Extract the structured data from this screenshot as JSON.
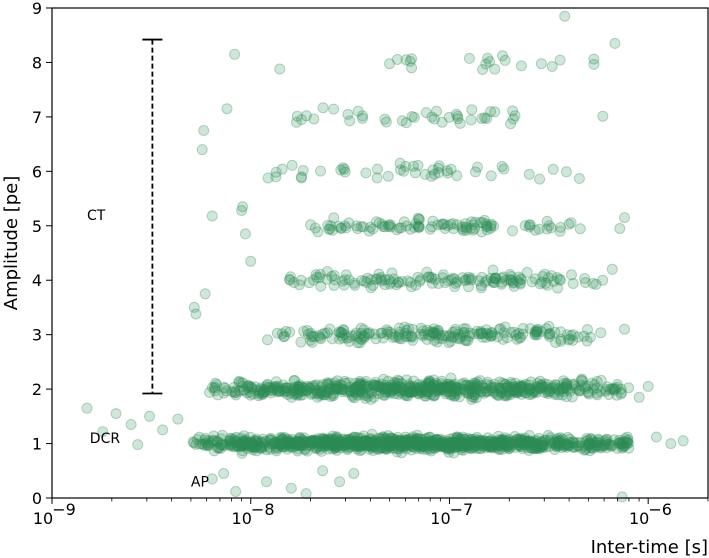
{
  "chart_data": {
    "type": "scatter",
    "xscale": "log",
    "xlabel": "Inter-time [s]",
    "ylabel": "Amplitude [pe]",
    "xlim": [
      1e-09,
      2e-06
    ],
    "ylim": [
      0,
      9
    ],
    "grid": false,
    "point_color": "#2e8b57",
    "point_opacity": 0.22,
    "x_ticks": [
      {
        "value": 1e-09,
        "base": "10",
        "exp": "−9"
      },
      {
        "value": 1e-08,
        "base": "10",
        "exp": "−8"
      },
      {
        "value": 1e-07,
        "base": "10",
        "exp": "−7"
      },
      {
        "value": 1e-06,
        "base": "10",
        "exp": "−6"
      }
    ],
    "y_ticks": [
      {
        "value": 0,
        "label": "0"
      },
      {
        "value": 1,
        "label": "1"
      },
      {
        "value": 2,
        "label": "2"
      },
      {
        "value": 3,
        "label": "3"
      },
      {
        "value": 4,
        "label": "4"
      },
      {
        "value": 5,
        "label": "5"
      },
      {
        "value": 6,
        "label": "6"
      },
      {
        "value": 7,
        "label": "7"
      },
      {
        "value": 8,
        "label": "8"
      },
      {
        "value": 9,
        "label": "9"
      }
    ],
    "bands": [
      {
        "amplitude": 1,
        "x_min": 5e-09,
        "x_max": 8e-07,
        "count": 1100,
        "spread": 0.06
      },
      {
        "amplitude": 2,
        "x_min": 6e-09,
        "x_max": 8e-07,
        "count": 650,
        "spread": 0.07
      },
      {
        "amplitude": 3,
        "x_min": 1.2e-08,
        "x_max": 6e-07,
        "count": 200,
        "spread": 0.07
      },
      {
        "amplitude": 4,
        "x_min": 1.5e-08,
        "x_max": 6e-07,
        "count": 140,
        "spread": 0.07
      },
      {
        "amplitude": 5,
        "x_min": 1.8e-08,
        "x_max": 6e-07,
        "count": 100,
        "spread": 0.06
      },
      {
        "amplitude": 6,
        "x_min": 1.2e-08,
        "x_max": 6e-07,
        "count": 45,
        "spread": 0.07
      },
      {
        "amplitude": 7,
        "x_min": 1.4e-08,
        "x_max": 6e-07,
        "count": 38,
        "spread": 0.07
      },
      {
        "amplitude": 8,
        "x_min": 4e-08,
        "x_max": 6e-07,
        "count": 20,
        "spread": 0.07
      }
    ],
    "points": [
      {
        "x": 1.5e-09,
        "y": 1.65
      },
      {
        "x": 1.8e-09,
        "y": 1.22
      },
      {
        "x": 2.1e-09,
        "y": 1.55
      },
      {
        "x": 2.5e-09,
        "y": 1.35
      },
      {
        "x": 2.7e-09,
        "y": 0.98
      },
      {
        "x": 3.1e-09,
        "y": 1.5
      },
      {
        "x": 3.6e-09,
        "y": 1.25
      },
      {
        "x": 4.3e-09,
        "y": 1.45
      },
      {
        "x": 5.2e-09,
        "y": 3.5
      },
      {
        "x": 5.3e-09,
        "y": 3.38
      },
      {
        "x": 5.8e-09,
        "y": 6.75
      },
      {
        "x": 5.7e-09,
        "y": 6.4
      },
      {
        "x": 5.9e-09,
        "y": 3.75
      },
      {
        "x": 6.4e-09,
        "y": 5.18
      },
      {
        "x": 7.6e-09,
        "y": 7.15
      },
      {
        "x": 8.3e-09,
        "y": 8.15
      },
      {
        "x": 9.1e-09,
        "y": 5.35
      },
      {
        "x": 9e-09,
        "y": 5.28
      },
      {
        "x": 9.4e-09,
        "y": 4.85
      },
      {
        "x": 1e-08,
        "y": 4.35
      },
      {
        "x": 1.4e-08,
        "y": 7.88
      },
      {
        "x": 1.7e-08,
        "y": 6.9
      },
      {
        "x": 1.8e-08,
        "y": 6.95
      },
      {
        "x": 3.8e-07,
        "y": 8.85
      },
      {
        "x": 6.8e-07,
        "y": 8.35
      },
      {
        "x": 7.4e-07,
        "y": 0.02
      },
      {
        "x": 6.4e-09,
        "y": 0.35
      },
      {
        "x": 7.3e-09,
        "y": 0.45
      },
      {
        "x": 8.4e-09,
        "y": 0.12
      },
      {
        "x": 1.2e-08,
        "y": 0.3
      },
      {
        "x": 1.6e-08,
        "y": 0.18
      },
      {
        "x": 1.9e-08,
        "y": 0.08
      },
      {
        "x": 2.3e-08,
        "y": 0.5
      },
      {
        "x": 2.8e-08,
        "y": 0.3
      },
      {
        "x": 3.3e-08,
        "y": 0.45
      },
      {
        "x": 1.5e-06,
        "y": 1.05
      },
      {
        "x": 1.3e-06,
        "y": 1.0
      },
      {
        "x": 1.1e-06,
        "y": 1.12
      },
      {
        "x": 9e-07,
        "y": 1.85
      },
      {
        "x": 1e-06,
        "y": 2.05
      },
      {
        "x": 7.6e-07,
        "y": 3.1
      },
      {
        "x": 6.6e-07,
        "y": 4.2
      },
      {
        "x": 7.2e-07,
        "y": 4.95
      },
      {
        "x": 7.6e-07,
        "y": 5.15
      }
    ],
    "annotations": [
      {
        "text": "CT",
        "x": 1.5e-09,
        "y": 5.2
      },
      {
        "text": "DCR",
        "x": 1.55e-09,
        "y": 1.1
      },
      {
        "text": "AP",
        "x": 5e-09,
        "y": 0.3
      }
    ],
    "ct_range": {
      "x": 3.2e-09,
      "y_min": 1.92,
      "y_max": 8.42
    }
  }
}
